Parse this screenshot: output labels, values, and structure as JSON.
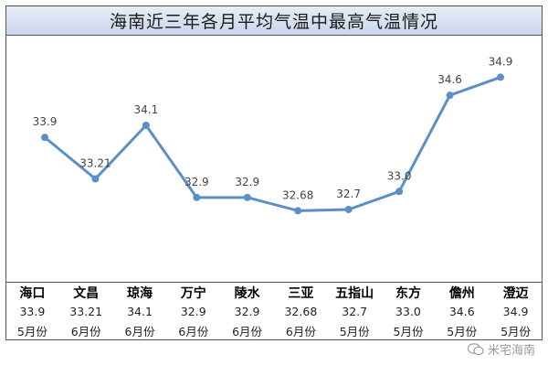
{
  "chart_data": {
    "type": "line",
    "title": "海南近三年各月平均气温中最高气温情况",
    "categories": [
      "海口",
      "文昌",
      "琼海",
      "万宁",
      "陵水",
      "三亚",
      "五指山",
      "东方",
      "儋州",
      "澄迈"
    ],
    "series": [
      {
        "values": [
          33.9,
          33.21,
          34.1,
          32.9,
          32.9,
          32.68,
          32.7,
          33.0,
          34.6,
          34.9
        ]
      }
    ],
    "value_labels": [
      "33.9",
      "33.21",
      "34.1",
      "32.9",
      "32.9",
      "32.68",
      "32.7",
      "33.0",
      "34.6",
      "34.9"
    ],
    "months": [
      "5月份",
      "6月份",
      "6月份",
      "6月份",
      "6月份",
      "6月份",
      "5月份",
      "5月份",
      "5月份",
      "5月份"
    ],
    "ylim": [
      32.0,
      35.5
    ],
    "grid": false,
    "line_color": "#5b8fc7"
  },
  "watermark": {
    "text": "米宅海南",
    "icon": "wechat-icon"
  }
}
